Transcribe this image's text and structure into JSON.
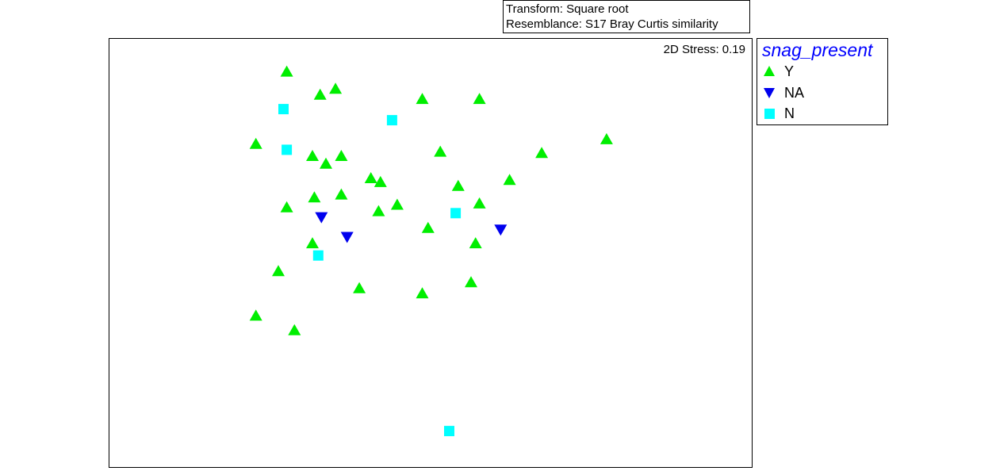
{
  "header": {
    "transform_line": "Transform: Square root",
    "resemblance_line": "Resemblance: S17 Bray Curtis similarity"
  },
  "plot": {
    "stress_label": "2D Stress: 0.19"
  },
  "legend": {
    "title": "snag_present",
    "items": [
      {
        "label": "Y",
        "color": "#00ee00",
        "marker": "triangle-up"
      },
      {
        "label": "NA",
        "color": "#0000ee",
        "marker": "triangle-down"
      },
      {
        "label": "N",
        "color": "#00ffff",
        "marker": "square"
      }
    ]
  },
  "chart_data": {
    "type": "scatter",
    "title": "",
    "xlabel": "",
    "ylabel": "",
    "stress": 0.19,
    "grid": false,
    "legend_position": "right",
    "xlim": [
      0,
      100
    ],
    "ylim": [
      0,
      100
    ],
    "series": [
      {
        "name": "Y",
        "color": "#00ee00",
        "marker": "triangle-up",
        "points": [
          [
            27.6,
            92.3
          ],
          [
            32.8,
            86.9
          ],
          [
            35.2,
            88.3
          ],
          [
            48.7,
            85.9
          ],
          [
            57.6,
            85.9
          ],
          [
            22.8,
            75.4
          ],
          [
            31.6,
            72.6
          ],
          [
            33.7,
            70.8
          ],
          [
            36.1,
            72.6
          ],
          [
            51.5,
            73.6
          ],
          [
            67.3,
            73.3
          ],
          [
            77.4,
            76.5
          ],
          [
            40.7,
            67.4
          ],
          [
            42.2,
            66.5
          ],
          [
            54.3,
            65.6
          ],
          [
            62.3,
            67.0
          ],
          [
            31.9,
            62.9
          ],
          [
            36.1,
            63.6
          ],
          [
            27.6,
            60.6
          ],
          [
            41.9,
            59.7
          ],
          [
            44.8,
            61.2
          ],
          [
            57.6,
            61.5
          ],
          [
            49.6,
            55.8
          ],
          [
            31.6,
            52.2
          ],
          [
            57.0,
            52.2
          ],
          [
            26.3,
            45.7
          ],
          [
            38.9,
            41.7
          ],
          [
            48.7,
            40.5
          ],
          [
            56.3,
            43.1
          ],
          [
            22.8,
            35.3
          ],
          [
            28.8,
            31.9
          ]
        ]
      },
      {
        "name": "NA",
        "color": "#0000ee",
        "marker": "triangle-down",
        "points": [
          [
            33.0,
            58.4
          ],
          [
            37.0,
            53.8
          ],
          [
            60.9,
            55.5
          ]
        ]
      },
      {
        "name": "N",
        "color": "#00ffff",
        "marker": "square",
        "points": [
          [
            27.1,
            83.6
          ],
          [
            44.0,
            81.0
          ],
          [
            27.6,
            74.1
          ],
          [
            53.9,
            59.3
          ],
          [
            32.5,
            49.4
          ],
          [
            52.9,
            8.4
          ]
        ]
      }
    ]
  }
}
